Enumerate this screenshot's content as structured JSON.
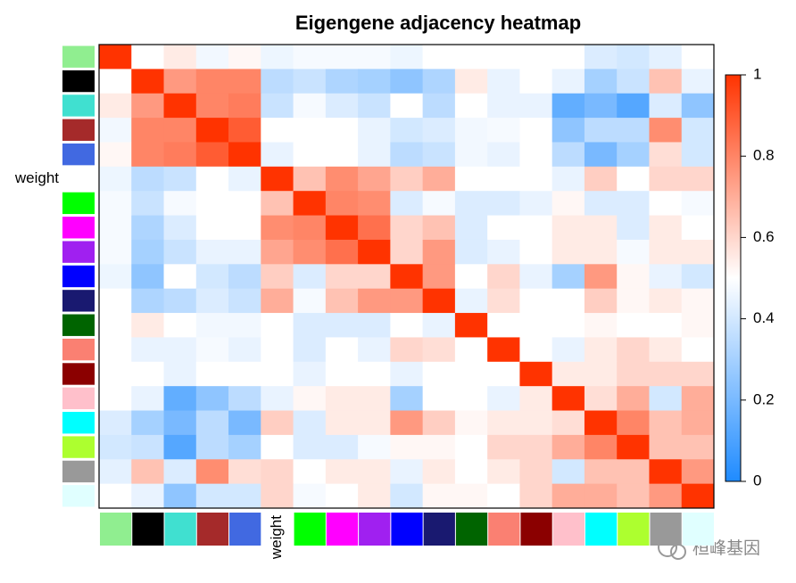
{
  "chart_data": {
    "type": "heatmap",
    "title": "Eigengene adjacency heatmap",
    "categories": [
      null,
      null,
      null,
      null,
      null,
      "weight",
      null,
      null,
      null,
      null,
      null,
      null,
      null,
      null,
      null,
      null,
      null,
      null,
      null
    ],
    "category_colors": [
      "#90ee90",
      "#000000",
      "#40e0d0",
      "#a52a2a",
      "#4169e1",
      "#ffffff",
      "#00ff00",
      "#ff00ff",
      "#a020f0",
      "#0000ff",
      "#191970",
      "#006400",
      "#fa8072",
      "#8b0000",
      "#ffc0cb",
      "#00ffff",
      "#adff2f",
      "#999999",
      "#e0ffff"
    ],
    "values": [
      [
        1,
        0.5,
        0.55,
        0.47,
        0.52,
        0.46,
        0.48,
        0.48,
        0.48,
        0.46,
        0.5,
        0.5,
        0.5,
        0.5,
        0.5,
        0.42,
        0.4,
        0.44,
        0.5
      ],
      [
        0.5,
        1,
        0.75,
        0.8,
        0.8,
        0.35,
        0.38,
        0.32,
        0.3,
        0.25,
        0.32,
        0.55,
        0.45,
        0.5,
        0.45,
        0.3,
        0.38,
        0.65,
        0.45
      ],
      [
        0.55,
        0.75,
        1,
        0.8,
        0.82,
        0.38,
        0.48,
        0.42,
        0.38,
        0.5,
        0.35,
        0.5,
        0.45,
        0.45,
        0.15,
        0.2,
        0.12,
        0.42,
        0.25
      ],
      [
        0.47,
        0.8,
        0.8,
        1,
        0.9,
        0.5,
        0.5,
        0.5,
        0.45,
        0.4,
        0.42,
        0.47,
        0.48,
        0.5,
        0.25,
        0.35,
        0.35,
        0.78,
        0.4
      ],
      [
        0.52,
        0.8,
        0.82,
        0.9,
        1,
        0.45,
        0.5,
        0.5,
        0.45,
        0.35,
        0.38,
        0.47,
        0.45,
        0.5,
        0.35,
        0.2,
        0.3,
        0.58,
        0.4
      ],
      [
        0.46,
        0.35,
        0.38,
        0.5,
        0.45,
        1,
        0.65,
        0.78,
        0.72,
        0.62,
        0.7,
        0.5,
        0.5,
        0.5,
        0.45,
        0.62,
        0.5,
        0.6,
        0.6
      ],
      [
        0.48,
        0.38,
        0.48,
        0.5,
        0.5,
        0.65,
        1,
        0.8,
        0.78,
        0.42,
        0.48,
        0.42,
        0.42,
        0.45,
        0.52,
        0.42,
        0.42,
        0.5,
        0.48
      ],
      [
        0.48,
        0.32,
        0.42,
        0.5,
        0.5,
        0.78,
        0.8,
        1,
        0.85,
        0.6,
        0.65,
        0.42,
        0.5,
        0.5,
        0.55,
        0.55,
        0.42,
        0.55,
        0.5
      ],
      [
        0.48,
        0.3,
        0.38,
        0.45,
        0.45,
        0.72,
        0.78,
        0.85,
        1,
        0.6,
        0.75,
        0.42,
        0.45,
        0.5,
        0.55,
        0.55,
        0.48,
        0.55,
        0.55
      ],
      [
        0.46,
        0.25,
        0.5,
        0.4,
        0.35,
        0.62,
        0.42,
        0.6,
        0.6,
        1,
        0.75,
        0.5,
        0.6,
        0.45,
        0.3,
        0.75,
        0.52,
        0.45,
        0.4
      ],
      [
        0.5,
        0.32,
        0.35,
        0.42,
        0.38,
        0.7,
        0.48,
        0.65,
        0.75,
        0.75,
        1,
        0.45,
        0.58,
        0.5,
        0.5,
        0.62,
        0.52,
        0.55,
        0.52
      ],
      [
        0.5,
        0.55,
        0.5,
        0.47,
        0.47,
        0.5,
        0.42,
        0.42,
        0.42,
        0.5,
        0.45,
        1,
        0.5,
        0.5,
        0.5,
        0.52,
        0.5,
        0.5,
        0.52
      ],
      [
        0.5,
        0.45,
        0.45,
        0.48,
        0.45,
        0.5,
        0.42,
        0.5,
        0.45,
        0.6,
        0.58,
        0.5,
        1,
        0.5,
        0.45,
        0.55,
        0.6,
        0.55,
        0.5
      ],
      [
        0.5,
        0.5,
        0.45,
        0.5,
        0.5,
        0.5,
        0.45,
        0.5,
        0.5,
        0.45,
        0.5,
        0.5,
        0.5,
        1,
        0.55,
        0.55,
        0.6,
        0.6,
        0.6
      ],
      [
        0.5,
        0.45,
        0.15,
        0.25,
        0.35,
        0.45,
        0.52,
        0.55,
        0.55,
        0.3,
        0.5,
        0.5,
        0.45,
        0.55,
        1,
        0.58,
        0.7,
        0.4,
        0.7
      ],
      [
        0.42,
        0.3,
        0.2,
        0.35,
        0.2,
        0.62,
        0.42,
        0.55,
        0.55,
        0.75,
        0.62,
        0.52,
        0.55,
        0.55,
        0.58,
        1,
        0.8,
        0.65,
        0.7
      ],
      [
        0.4,
        0.38,
        0.12,
        0.35,
        0.3,
        0.5,
        0.42,
        0.42,
        0.48,
        0.52,
        0.52,
        0.5,
        0.6,
        0.6,
        0.7,
        0.8,
        1,
        0.65,
        0.65
      ],
      [
        0.44,
        0.65,
        0.42,
        0.78,
        0.58,
        0.6,
        0.5,
        0.55,
        0.55,
        0.45,
        0.55,
        0.5,
        0.55,
        0.6,
        0.4,
        0.65,
        0.65,
        1,
        0.75
      ],
      [
        0.5,
        0.45,
        0.25,
        0.4,
        0.4,
        0.6,
        0.48,
        0.5,
        0.55,
        0.4,
        0.52,
        0.52,
        0.5,
        0.6,
        0.7,
        0.7,
        0.65,
        0.75,
        1
      ]
    ],
    "colormap": [
      "#1f8bff",
      "#ffffff",
      "#ff3300"
    ],
    "zlim": [
      0,
      1
    ],
    "zticks": [
      0,
      0.2,
      0.4,
      0.6,
      0.8,
      1
    ],
    "watermark": "桓峰基因"
  }
}
